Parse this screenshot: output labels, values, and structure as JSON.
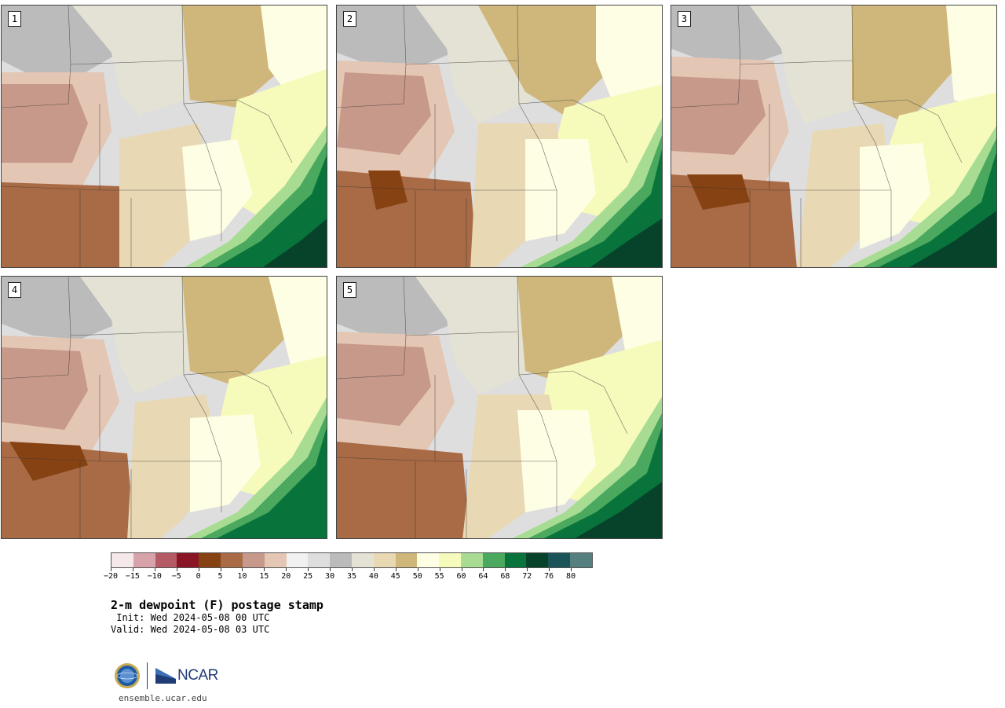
{
  "panels": [
    {
      "id": "1"
    },
    {
      "id": "2"
    },
    {
      "id": "3"
    },
    {
      "id": "4"
    },
    {
      "id": "5"
    }
  ],
  "legend": {
    "colors": [
      "#f4e8ea",
      "#d7a2a9",
      "#b45b66",
      "#8a1625",
      "#874214",
      "#a86b45",
      "#c7998a",
      "#e3c6b4",
      "#f1f1f1",
      "#dedede",
      "#bbbbbb",
      "#e4e2d4",
      "#e8d8b3",
      "#cfb77c",
      "#fefee4",
      "#f6fbbb",
      "#a8dc93",
      "#4aa95f",
      "#08733a",
      "#07432b",
      "#1a5458",
      "#56807f"
    ],
    "tick_labels": [
      "−20",
      "−15",
      "−10",
      "−5",
      "0",
      "5",
      "10",
      "15",
      "20",
      "25",
      "30",
      "35",
      "40",
      "45",
      "50",
      "55",
      "60",
      "64",
      "68",
      "72",
      "76",
      "80"
    ]
  },
  "title": "2-m dewpoint (F) postage stamp",
  "init": " Init: Wed 2024-05-08 00 UTC",
  "valid": "Valid: Wed 2024-05-08 03 UTC",
  "logo": {
    "nsf": "NSF",
    "ncar": "NCAR"
  },
  "website": "ensemble.ucar.edu"
}
